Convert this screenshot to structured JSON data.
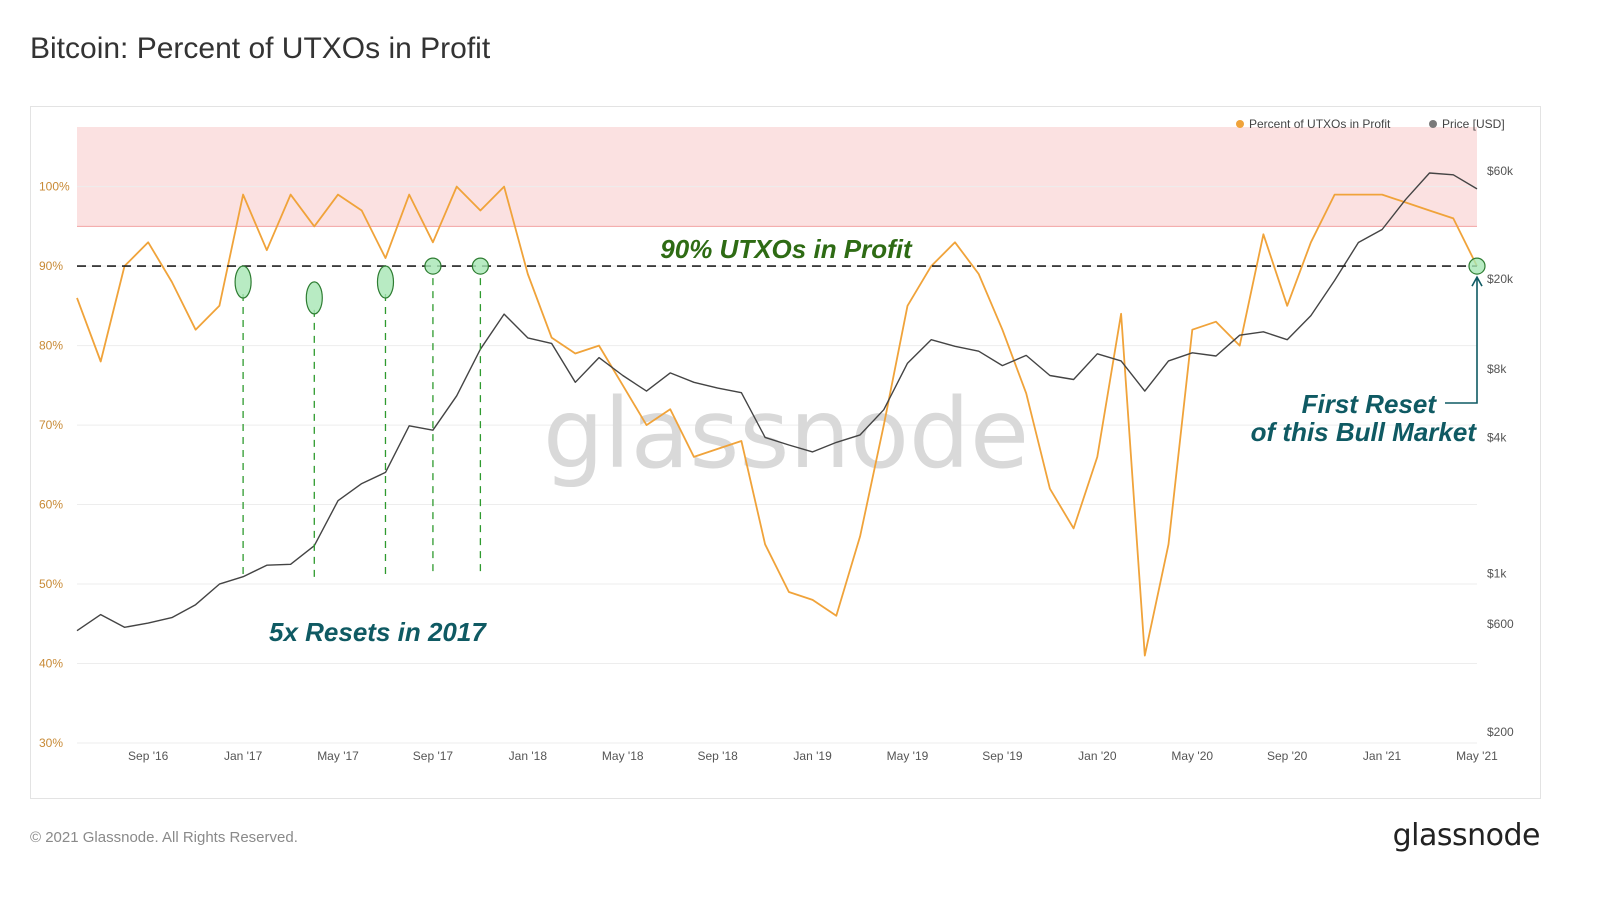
{
  "page": {
    "title": "Bitcoin: Percent of UTXOs in Profit",
    "footer": "© 2021 Glassnode. All Rights Reserved.",
    "brand": "glassnode",
    "watermark": "glassnode"
  },
  "chart_data": {
    "type": "line",
    "legend": [
      {
        "name": "Percent of UTXOs in Profit",
        "color": "#f0a33a"
      },
      {
        "name": "Price [USD]",
        "color": "#7a7a7a"
      }
    ],
    "legend_position": "top-right",
    "y_left": {
      "ticks": [
        "30%",
        "40%",
        "50%",
        "60%",
        "70%",
        "80%",
        "90%",
        "100%"
      ],
      "values": [
        30,
        40,
        50,
        60,
        70,
        80,
        90,
        100
      ],
      "range": [
        30,
        107.5
      ],
      "color": "#c88a36"
    },
    "y_right": {
      "scale": "log",
      "ticks": [
        "$200",
        "$600",
        "$1k",
        "$4k",
        "$8k",
        "$20k",
        "$60k"
      ],
      "values": [
        200,
        600,
        1000,
        4000,
        8000,
        20000,
        60000
      ]
    },
    "x_axis": {
      "ticks": [
        "Sep '16",
        "Jan '17",
        "May '17",
        "Sep '17",
        "Jan '18",
        "May '18",
        "Sep '18",
        "Jan '19",
        "May '19",
        "Sep '19",
        "Jan '20",
        "May '20",
        "Sep '20",
        "Jan '21",
        "May '21"
      ],
      "tick_dates": [
        "2016-09",
        "2017-01",
        "2017-05",
        "2017-09",
        "2018-01",
        "2018-05",
        "2018-09",
        "2019-01",
        "2019-05",
        "2019-09",
        "2020-01",
        "2020-05",
        "2020-09",
        "2021-01",
        "2021-05"
      ],
      "range": [
        "2016-06",
        "2021-05"
      ]
    },
    "highlight_band": {
      "from": 95,
      "to": 107.5,
      "color": "#fbe1e1"
    },
    "threshold": {
      "value": 90,
      "style": "dashed"
    },
    "series": [
      {
        "name": "Percent of UTXOs in Profit",
        "color": "#f0a33a",
        "points": [
          [
            "2016-06",
            86
          ],
          [
            "2016-07",
            78
          ],
          [
            "2016-08",
            90
          ],
          [
            "2016-09",
            93
          ],
          [
            "2016-10",
            88
          ],
          [
            "2016-11",
            82
          ],
          [
            "2016-12",
            85
          ],
          [
            "2017-01",
            99
          ],
          [
            "2017-02",
            92
          ],
          [
            "2017-03",
            99
          ],
          [
            "2017-04",
            95
          ],
          [
            "2017-05",
            99
          ],
          [
            "2017-06",
            97
          ],
          [
            "2017-07",
            91
          ],
          [
            "2017-08",
            99
          ],
          [
            "2017-09",
            93
          ],
          [
            "2017-10",
            100
          ],
          [
            "2017-11",
            97
          ],
          [
            "2017-12",
            100
          ],
          [
            "2018-01",
            89
          ],
          [
            "2018-02",
            81
          ],
          [
            "2018-03",
            79
          ],
          [
            "2018-04",
            80
          ],
          [
            "2018-05",
            75
          ],
          [
            "2018-06",
            70
          ],
          [
            "2018-07",
            72
          ],
          [
            "2018-08",
            66
          ],
          [
            "2018-09",
            67
          ],
          [
            "2018-10",
            68
          ],
          [
            "2018-11",
            55
          ],
          [
            "2018-12",
            49
          ],
          [
            "2019-01",
            48
          ],
          [
            "2019-02",
            46
          ],
          [
            "2019-03",
            56
          ],
          [
            "2019-04",
            70
          ],
          [
            "2019-05",
            85
          ],
          [
            "2019-06",
            90
          ],
          [
            "2019-07",
            93
          ],
          [
            "2019-08",
            89
          ],
          [
            "2019-09",
            82
          ],
          [
            "2019-10",
            74
          ],
          [
            "2019-11",
            62
          ],
          [
            "2019-12",
            57
          ],
          [
            "2020-01",
            66
          ],
          [
            "2020-02",
            84
          ],
          [
            "2020-03",
            41
          ],
          [
            "2020-04",
            55
          ],
          [
            "2020-05",
            82
          ],
          [
            "2020-06",
            83
          ],
          [
            "2020-07",
            80
          ],
          [
            "2020-08",
            94
          ],
          [
            "2020-09",
            85
          ],
          [
            "2020-10",
            93
          ],
          [
            "2020-11",
            99
          ],
          [
            "2020-12",
            99
          ],
          [
            "2021-01",
            99
          ],
          [
            "2021-02",
            98
          ],
          [
            "2021-03",
            97
          ],
          [
            "2021-04",
            96
          ],
          [
            "2021-05",
            90
          ]
        ]
      },
      {
        "name": "Price [USD]",
        "color": "#444444",
        "points": [
          [
            "2016-06",
            560
          ],
          [
            "2016-07",
            660
          ],
          [
            "2016-08",
            580
          ],
          [
            "2016-09",
            605
          ],
          [
            "2016-10",
            640
          ],
          [
            "2016-11",
            730
          ],
          [
            "2016-12",
            900
          ],
          [
            "2017-01",
            970
          ],
          [
            "2017-02",
            1090
          ],
          [
            "2017-03",
            1100
          ],
          [
            "2017-04",
            1330
          ],
          [
            "2017-05",
            2100
          ],
          [
            "2017-06",
            2500
          ],
          [
            "2017-07",
            2800
          ],
          [
            "2017-08",
            4500
          ],
          [
            "2017-09",
            4300
          ],
          [
            "2017-10",
            6100
          ],
          [
            "2017-11",
            9800
          ],
          [
            "2017-12",
            14000
          ],
          [
            "2018-01",
            11000
          ],
          [
            "2018-02",
            10400
          ],
          [
            "2018-03",
            7000
          ],
          [
            "2018-04",
            9000
          ],
          [
            "2018-05",
            7500
          ],
          [
            "2018-06",
            6400
          ],
          [
            "2018-07",
            7700
          ],
          [
            "2018-08",
            7000
          ],
          [
            "2018-09",
            6600
          ],
          [
            "2018-10",
            6300
          ],
          [
            "2018-11",
            4000
          ],
          [
            "2018-12",
            3700
          ],
          [
            "2019-01",
            3450
          ],
          [
            "2019-02",
            3800
          ],
          [
            "2019-03",
            4100
          ],
          [
            "2019-04",
            5300
          ],
          [
            "2019-05",
            8500
          ],
          [
            "2019-06",
            10800
          ],
          [
            "2019-07",
            10100
          ],
          [
            "2019-08",
            9600
          ],
          [
            "2019-09",
            8300
          ],
          [
            "2019-10",
            9200
          ],
          [
            "2019-11",
            7500
          ],
          [
            "2019-12",
            7200
          ],
          [
            "2020-01",
            9350
          ],
          [
            "2020-02",
            8700
          ],
          [
            "2020-03",
            6400
          ],
          [
            "2020-04",
            8700
          ],
          [
            "2020-05",
            9450
          ],
          [
            "2020-06",
            9150
          ],
          [
            "2020-07",
            11300
          ],
          [
            "2020-08",
            11700
          ],
          [
            "2020-09",
            10800
          ],
          [
            "2020-10",
            13800
          ],
          [
            "2020-11",
            19700
          ],
          [
            "2020-12",
            29000
          ],
          [
            "2021-01",
            33100
          ],
          [
            "2021-02",
            45000
          ],
          [
            "2021-03",
            58800
          ],
          [
            "2021-04",
            57700
          ],
          [
            "2021-05",
            50000
          ]
        ]
      }
    ],
    "annotations": {
      "threshold_label": "90% UTXOs in Profit",
      "resets_2017": "5x Resets in 2017",
      "first_reset_line1": "First Reset",
      "first_reset_line2": "of this Bull Market",
      "reset_markers": [
        {
          "date": "2017-01",
          "value": 88
        },
        {
          "date": "2017-04",
          "value": 86
        },
        {
          "date": "2017-07",
          "value": 88
        },
        {
          "date": "2017-09",
          "value": 90
        },
        {
          "date": "2017-11",
          "value": 90
        },
        {
          "date": "2021-05",
          "value": 90
        }
      ]
    }
  }
}
